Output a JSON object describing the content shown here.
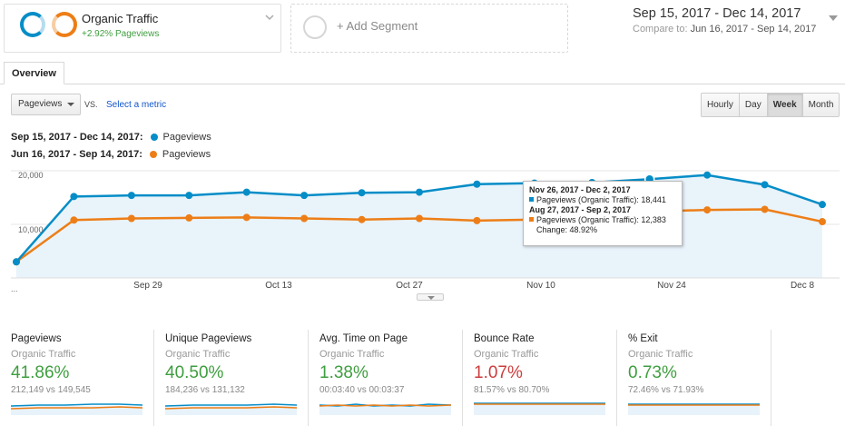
{
  "segments": {
    "primary": {
      "title": "Organic Traffic",
      "subtitle": "+2.92% Pageviews"
    },
    "add_label": "+ Add Segment"
  },
  "date_range": {
    "current": "Sep 15, 2017 - Dec 14, 2017",
    "compare_label": "Compare to:",
    "compare_range": "Jun 16, 2017 - Sep 14, 2017"
  },
  "tabs": [
    "Overview"
  ],
  "metric": {
    "selected": "Pageviews",
    "vs": "VS.",
    "select_link": "Select a metric"
  },
  "granularity": {
    "options": [
      "Hourly",
      "Day",
      "Week",
      "Month"
    ],
    "active": "Week"
  },
  "legend": [
    {
      "range": "Sep 15, 2017 - Dec 14, 2017:",
      "metric": "Pageviews",
      "color": "#058dc7"
    },
    {
      "range": "Jun 16, 2017 - Sep 14, 2017:",
      "metric": "Pageviews",
      "color": "#ed7e17"
    }
  ],
  "chart_data": {
    "type": "line",
    "title": "",
    "xlabel": "",
    "ylabel": "Pageviews",
    "ylim": [
      0,
      20000
    ],
    "y_ticks": [
      "20,000",
      "10,000"
    ],
    "x_tick_labels": [
      "Sep 29",
      "Oct 13",
      "Oct 27",
      "Nov 10",
      "Nov 24",
      "Dec 8"
    ],
    "x_start_label": "...",
    "series": [
      {
        "name": "Sep 15, 2017 - Dec 14, 2017: Pageviews",
        "color": "#058dc7",
        "values": [
          3000,
          15200,
          15400,
          15400,
          16000,
          15400,
          15900,
          16000,
          17500,
          17700,
          17800,
          18441,
          19200,
          17400,
          13700
        ]
      },
      {
        "name": "Jun 16, 2017 - Sep 14, 2017: Pageviews",
        "color": "#ed7e17",
        "values": [
          3000,
          10800,
          11100,
          11200,
          11300,
          11100,
          10900,
          11100,
          10700,
          10900,
          11200,
          12383,
          12700,
          12800,
          10500
        ]
      }
    ]
  },
  "tooltip": {
    "current_range": "Nov 26, 2017 - Dec 2, 2017",
    "current_line": "Pageviews (Organic Traffic): 18,441",
    "previous_range": "Aug 27, 2017 - Sep 2, 2017",
    "previous_line": "Pageviews (Organic Traffic): 12,383",
    "change": "Change: 48.92%"
  },
  "scorecards": [
    {
      "title": "Pageviews",
      "segment": "Organic Traffic",
      "pct": "41.86%",
      "compare": "212,149 vs 149,545",
      "trend": "up"
    },
    {
      "title": "Unique Pageviews",
      "segment": "Organic Traffic",
      "pct": "40.50%",
      "compare": "184,236 vs 131,132",
      "trend": "up"
    },
    {
      "title": "Avg. Time on Page",
      "segment": "Organic Traffic",
      "pct": "1.38%",
      "compare": "00:03:40 vs 00:03:37",
      "trend": "up"
    },
    {
      "title": "Bounce Rate",
      "segment": "Organic Traffic",
      "pct": "1.07%",
      "compare": "81.57% vs 80.70%",
      "trend": "down"
    },
    {
      "title": "% Exit",
      "segment": "Organic Traffic",
      "pct": "0.73%",
      "compare": "72.46% vs 71.93%",
      "trend": "up"
    }
  ],
  "colors": {
    "primary_series": "#058dc7",
    "compare_series": "#ed7e17",
    "positive": "#3f9e3f",
    "negative": "#cc3e3e",
    "link": "#1155cc"
  }
}
